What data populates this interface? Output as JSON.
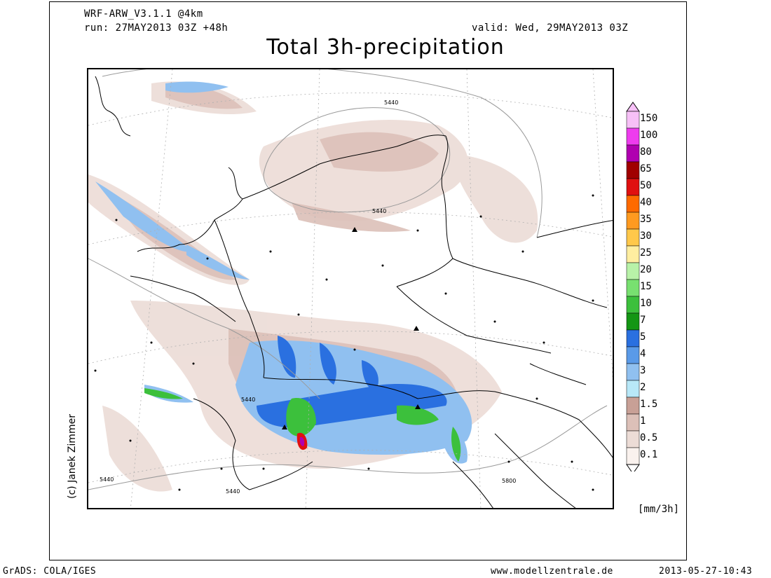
{
  "header": {
    "model": "WRF-ARW_V3.1.1 @4km",
    "run": "run: 27MAY2013 03Z +48h",
    "valid": "valid: Wed, 29MAY2013 03Z",
    "title": "Total 3h-precipitation"
  },
  "legend": {
    "unit": "[mm/3h]",
    "levels": [
      {
        "label": "150",
        "color": "#f7c0f7"
      },
      {
        "label": "100",
        "color": "#ee3cee"
      },
      {
        "label": "80",
        "color": "#b000b0"
      },
      {
        "label": "65",
        "color": "#a00000"
      },
      {
        "label": "50",
        "color": "#e01010"
      },
      {
        "label": "40",
        "color": "#ff6a00"
      },
      {
        "label": "35",
        "color": "#ff9a20"
      },
      {
        "label": "30",
        "color": "#ffc84a"
      },
      {
        "label": "25",
        "color": "#ffeea0"
      },
      {
        "label": "20",
        "color": "#b8f2a8"
      },
      {
        "label": "15",
        "color": "#78e070"
      },
      {
        "label": "10",
        "color": "#3cc03c"
      },
      {
        "label": "7",
        "color": "#149614"
      },
      {
        "label": "5",
        "color": "#2a70e0"
      },
      {
        "label": "4",
        "color": "#5a9ae8"
      },
      {
        "label": "3",
        "color": "#90c0f0"
      },
      {
        "label": "2",
        "color": "#b8e8f8"
      },
      {
        "label": "1.5",
        "color": "#c8a096"
      },
      {
        "label": "1",
        "color": "#dcc0b8"
      },
      {
        "label": "0.5",
        "color": "#ecdcd6"
      },
      {
        "label": "0.1",
        "color": "#faf2ee"
      }
    ]
  },
  "contour_labels": [
    "5440",
    "5440",
    "5440",
    "5440",
    "5440",
    "5800"
  ],
  "footer": {
    "left": "GrADS: COLA/IGES",
    "center": "www.modellzentrale.de",
    "right": "2013-05-27-10:43"
  },
  "credit": "(c) Janek Zimmer"
}
